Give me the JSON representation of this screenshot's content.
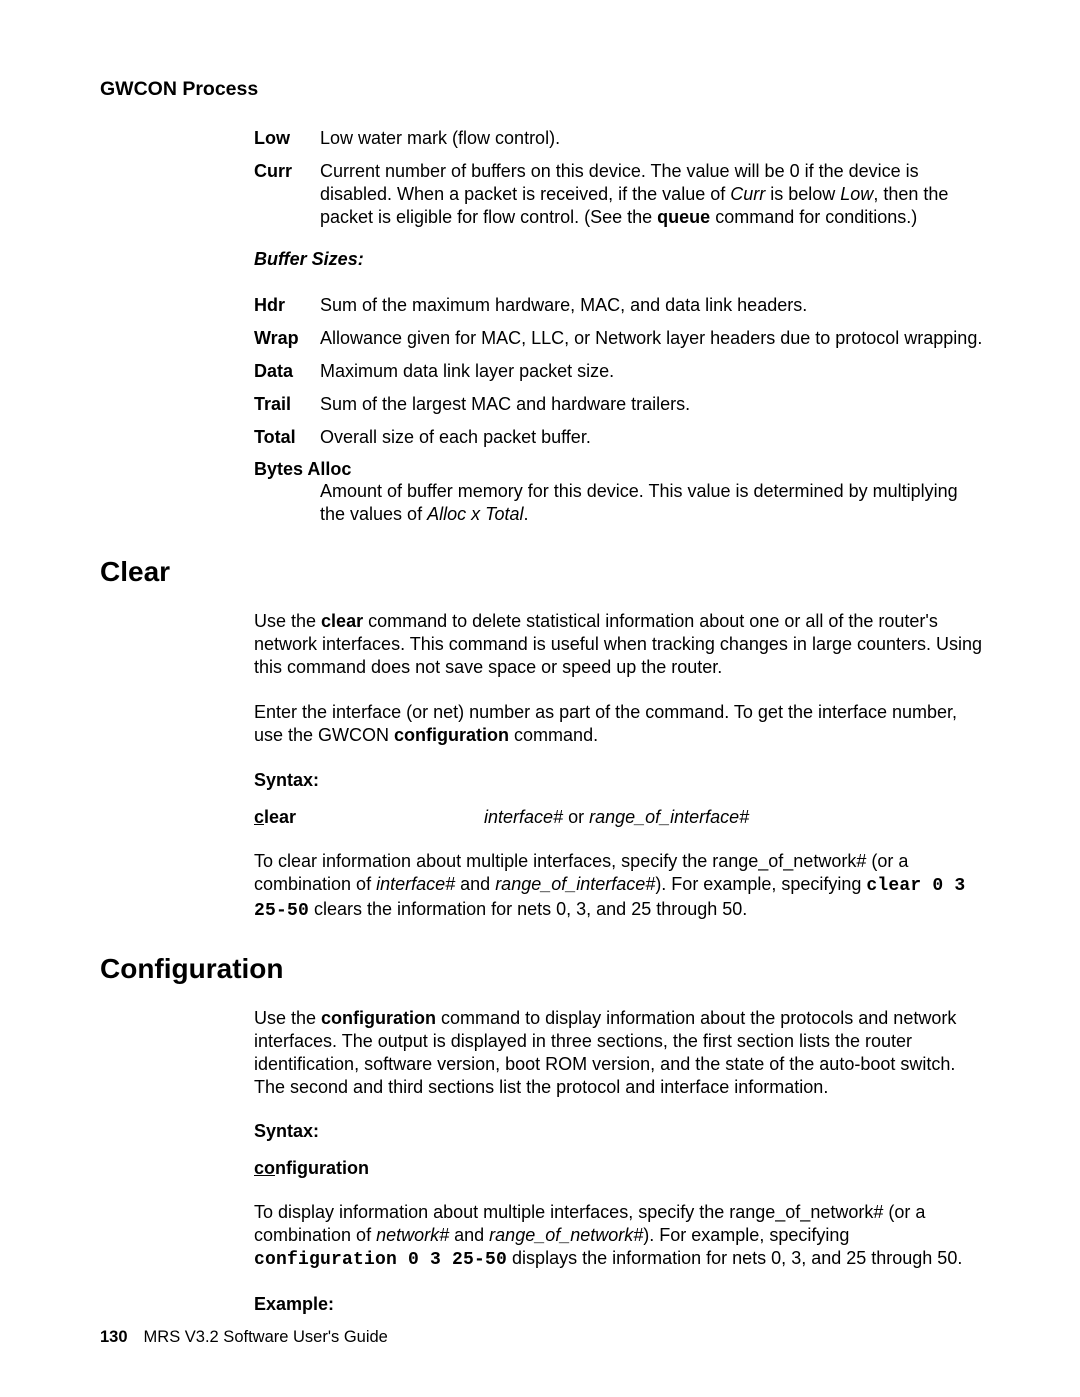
{
  "header": {
    "title": "GWCON Process"
  },
  "defs1": {
    "low": {
      "term": "Low",
      "desc": "Low water mark (flow control)."
    },
    "curr": {
      "term": "Curr",
      "desc_pre": "Current number of buffers on this device. The value will be 0 if the device is disabled. When a packet is received, if the value of ",
      "it1": "Curr",
      "mid1": " is below ",
      "it2": "Low",
      "mid2": ", then the packet is eligible for flow control. (See the ",
      "bold": "queue",
      "tail": " command for conditions.)"
    }
  },
  "buffer_sizes": {
    "heading": "Buffer Sizes:"
  },
  "defs2": {
    "hdr": {
      "term": "Hdr",
      "desc": "Sum of the maximum hardware, MAC, and data link headers."
    },
    "wrap": {
      "term": "Wrap",
      "desc": "Allowance given for MAC, LLC, or Network layer headers due to protocol wrapping."
    },
    "data": {
      "term": "Data",
      "desc": "Maximum data link layer packet size."
    },
    "trail": {
      "term": "Trail",
      "desc": "Sum of the largest MAC and hardware trailers."
    },
    "total": {
      "term": "Total",
      "desc": "Overall size of each packet buffer."
    }
  },
  "bytes_alloc": {
    "term": "Bytes Alloc",
    "desc_pre": "Amount of buffer memory for this device. This value is determined by multiplying the values of ",
    "it": "Alloc x Total",
    "tail": "."
  },
  "clear": {
    "heading": "Clear",
    "p1_pre": "Use the ",
    "p1_bold": "clear",
    "p1_post": " command to delete statistical information about one or all of the router's network interfaces. This command is useful when tracking changes in large counters. Using this command does not save space or speed up the router.",
    "p2_pre": "Enter the interface (or net) number as part of the command. To get the interface number, use the GWCON ",
    "p2_bold": "configuration",
    "p2_post": " command.",
    "syntax_label": "Syntax:",
    "cmd_ul": "c",
    "cmd_rest": "lear",
    "arg_it1": "interface#",
    "arg_mid": " or ",
    "arg_it2": "range_of_interface#",
    "p3_a": "To clear information about multiple interfaces, specify the range_of_network# (or a combination of ",
    "p3_it1": "interface#",
    "p3_b": " and ",
    "p3_it2": "range_of_interface#",
    "p3_c": "). For example, specifying ",
    "p3_code": "clear 0 3 25-50",
    "p3_d": " clears the information for nets 0, 3, and 25 through 50."
  },
  "config": {
    "heading": "Configuration",
    "p1_pre": "Use the ",
    "p1_bold": "configuration",
    "p1_post": " command to display information about the protocols and network interfaces. The output is displayed in three sections, the first section lists the router identification, software version, boot ROM version, and the state of the auto-boot switch. The second and third sections list the protocol and interface information.",
    "syntax_label": "Syntax:",
    "cmd_ul": "co",
    "cmd_rest": "nfiguration",
    "p2_a": "To display information about multiple interfaces, specify the range_of_network# (or a combination of ",
    "p2_it1": "network#",
    "p2_b": " and ",
    "p2_it2": "range_of_network#",
    "p2_c": "). For example, specifying ",
    "p2_code": "configuration 0 3 25-50",
    "p2_d": " displays the information for nets 0, 3, and 25 through 50.",
    "example_label": "Example:"
  },
  "footer": {
    "page": "130",
    "title": "MRS V3.2 Software User's Guide"
  }
}
